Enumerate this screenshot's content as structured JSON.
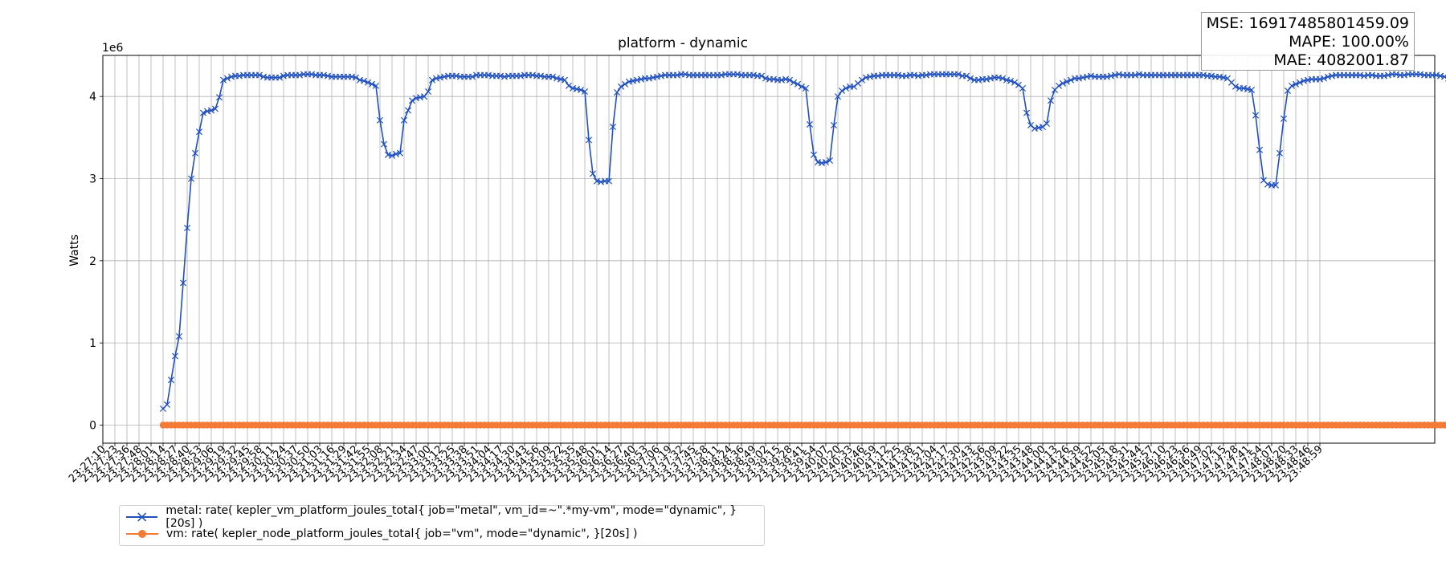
{
  "chart_data": {
    "type": "line",
    "title": "platform - dynamic",
    "ylabel": "Watts",
    "xlabel": "",
    "y_offset_label": "1e6",
    "ylim": [
      -0.22,
      4.5
    ],
    "yticks": [
      0,
      1,
      2,
      3,
      4
    ],
    "grid": true,
    "legend_placement": "bottom-left (outside)",
    "x_tick_labels": [
      "23:27:10",
      "23:27:23",
      "23:27:36",
      "23:27:48",
      "23:28:01",
      "23:28:14",
      "23:28:27",
      "23:28:40",
      "23:28:53",
      "23:29:06",
      "23:29:19",
      "23:29:32",
      "23:29:45",
      "23:29:58",
      "23:30:11",
      "23:30:24",
      "23:30:37",
      "23:30:50",
      "23:31:03",
      "23:31:16",
      "23:31:29",
      "23:31:42",
      "23:31:55",
      "23:32:08",
      "23:32:21",
      "23:32:34",
      "23:32:47",
      "23:33:00",
      "23:33:12",
      "23:33:25",
      "23:33:38",
      "23:33:51",
      "23:34:04",
      "23:34:17",
      "23:34:30",
      "23:34:43",
      "23:34:56",
      "23:35:09",
      "23:35:22",
      "23:35:35",
      "23:35:48",
      "23:36:01",
      "23:36:14",
      "23:36:27",
      "23:36:40",
      "23:36:53",
      "23:37:06",
      "23:37:19",
      "23:37:32",
      "23:37:45",
      "23:37:58",
      "23:38:11",
      "23:38:24",
      "23:38:36",
      "23:38:49",
      "23:39:02",
      "23:39:15",
      "23:39:28",
      "23:39:41",
      "23:39:54",
      "23:40:07",
      "23:40:20",
      "23:40:33",
      "23:40:46",
      "23:40:59",
      "23:41:12",
      "23:41:25",
      "23:41:38",
      "23:41:51",
      "23:42:04",
      "23:42:17",
      "23:42:30",
      "23:42:43",
      "23:42:56",
      "23:43:09",
      "23:43:22",
      "23:43:35",
      "23:43:48",
      "23:44:00",
      "23:44:13",
      "23:44:26",
      "23:44:39",
      "23:44:52",
      "23:45:05",
      "23:45:18",
      "23:45:31",
      "23:45:44",
      "23:45:57",
      "23:46:10",
      "23:46:23",
      "23:46:36",
      "23:46:49",
      "23:47:02",
      "23:47:15",
      "23:47:28",
      "23:47:41",
      "23:47:54",
      "23:48:07",
      "23:48:20",
      "23:48:33",
      "23:48:46",
      "23:48:59"
    ],
    "series": [
      {
        "name": "metal: rate( kepler_vm_platform_joules_total{ job=\"metal\", vm_id=~\".*my-vm\", mode=\"dynamic\", }[20s] )",
        "color": "#1f4fc1",
        "marker": "x",
        "start_index": 5,
        "values": [
          0.2,
          0.25,
          0.55,
          0.84,
          1.08,
          1.73,
          2.4,
          3.0,
          3.31,
          3.57,
          3.8,
          3.82,
          3.83,
          3.85,
          3.99,
          4.2,
          4.22,
          4.24,
          4.25,
          4.25,
          4.26,
          4.26,
          4.26,
          4.26,
          4.26,
          4.24,
          4.23,
          4.23,
          4.23,
          4.23,
          4.25,
          4.26,
          4.26,
          4.26,
          4.26,
          4.27,
          4.27,
          4.27,
          4.26,
          4.26,
          4.26,
          4.25,
          4.24,
          4.24,
          4.24,
          4.24,
          4.24,
          4.24,
          4.23,
          4.2,
          4.19,
          4.17,
          4.15,
          4.13,
          3.71,
          3.42,
          3.29,
          3.28,
          3.3,
          3.31,
          3.71,
          3.83,
          3.95,
          3.98,
          3.99,
          4.0,
          4.06,
          4.2,
          4.22,
          4.23,
          4.24,
          4.25,
          4.25,
          4.25,
          4.24,
          4.24,
          4.24,
          4.24,
          4.26,
          4.26,
          4.26,
          4.26,
          4.25,
          4.25,
          4.25,
          4.24,
          4.25,
          4.25,
          4.25,
          4.25,
          4.26,
          4.26,
          4.26,
          4.25,
          4.25,
          4.24,
          4.24,
          4.24,
          4.22,
          4.21,
          4.2,
          4.13,
          4.1,
          4.09,
          4.08,
          4.06,
          3.47,
          3.06,
          2.97,
          2.96,
          2.97,
          2.97,
          3.63,
          4.05,
          4.12,
          4.15,
          4.18,
          4.19,
          4.2,
          4.21,
          4.22,
          4.22,
          4.23,
          4.24,
          4.25,
          4.26,
          4.26,
          4.26,
          4.26,
          4.27,
          4.27,
          4.26,
          4.26,
          4.26,
          4.26,
          4.26,
          4.26,
          4.26,
          4.26,
          4.26,
          4.27,
          4.27,
          4.27,
          4.27,
          4.26,
          4.26,
          4.26,
          4.26,
          4.25,
          4.25,
          4.22,
          4.21,
          4.21,
          4.2,
          4.2,
          4.21,
          4.2,
          4.17,
          4.15,
          4.12,
          4.1,
          3.66,
          3.29,
          3.2,
          3.19,
          3.2,
          3.22,
          3.65,
          4.0,
          4.07,
          4.1,
          4.12,
          4.12,
          4.16,
          4.2,
          4.23,
          4.24,
          4.25,
          4.25,
          4.26,
          4.26,
          4.26,
          4.26,
          4.26,
          4.25,
          4.25,
          4.26,
          4.26,
          4.25,
          4.26,
          4.26,
          4.27,
          4.27,
          4.27,
          4.27,
          4.27,
          4.27,
          4.27,
          4.27,
          4.25,
          4.25,
          4.22,
          4.2,
          4.2,
          4.21,
          4.21,
          4.22,
          4.23,
          4.23,
          4.22,
          4.2,
          4.19,
          4.17,
          4.14,
          4.1,
          3.8,
          3.65,
          3.61,
          3.62,
          3.63,
          3.67,
          3.95,
          4.08,
          4.13,
          4.16,
          4.18,
          4.2,
          4.22,
          4.22,
          4.23,
          4.24,
          4.25,
          4.24,
          4.24,
          4.24,
          4.24,
          4.25,
          4.26,
          4.27,
          4.26,
          4.26,
          4.26,
          4.26,
          4.27,
          4.26,
          4.26,
          4.26,
          4.26,
          4.26,
          4.26,
          4.26,
          4.26,
          4.26,
          4.26,
          4.26,
          4.26,
          4.26,
          4.26,
          4.26,
          4.26,
          4.25,
          4.25,
          4.24,
          4.24,
          4.23,
          4.22,
          4.17,
          4.12,
          4.1,
          4.1,
          4.09,
          4.08,
          3.77,
          3.35,
          2.98,
          2.93,
          2.92,
          2.92,
          3.31,
          3.73,
          4.07,
          4.13,
          4.15,
          4.17,
          4.19,
          4.2,
          4.21,
          4.21,
          4.21,
          4.22,
          4.24,
          4.25,
          4.26,
          4.26,
          4.26,
          4.26,
          4.26,
          4.26,
          4.26,
          4.25,
          4.26,
          4.26,
          4.25,
          4.25,
          4.25,
          4.26,
          4.27,
          4.27,
          4.26,
          4.26,
          4.27,
          4.27,
          4.27,
          4.27,
          4.26,
          4.26,
          4.26,
          4.26,
          4.25,
          4.24,
          4.22,
          4.22,
          4.21,
          4.21,
          4.21,
          4.19,
          4.17,
          4.15,
          4.14,
          4.13,
          4.06
        ]
      },
      {
        "name": "vm: rate( kepler_node_platform_joules_total{ job=\"vm\", mode=\"dynamic\", }[20s] )",
        "color": "#f57a35",
        "marker": "o",
        "start_index": 5,
        "constant_value": 0
      }
    ]
  },
  "stats": {
    "mse": "MSE: 16917485801459.09",
    "mape": "MAPE: 100.00%",
    "mae": "MAE: 4082001.87"
  }
}
